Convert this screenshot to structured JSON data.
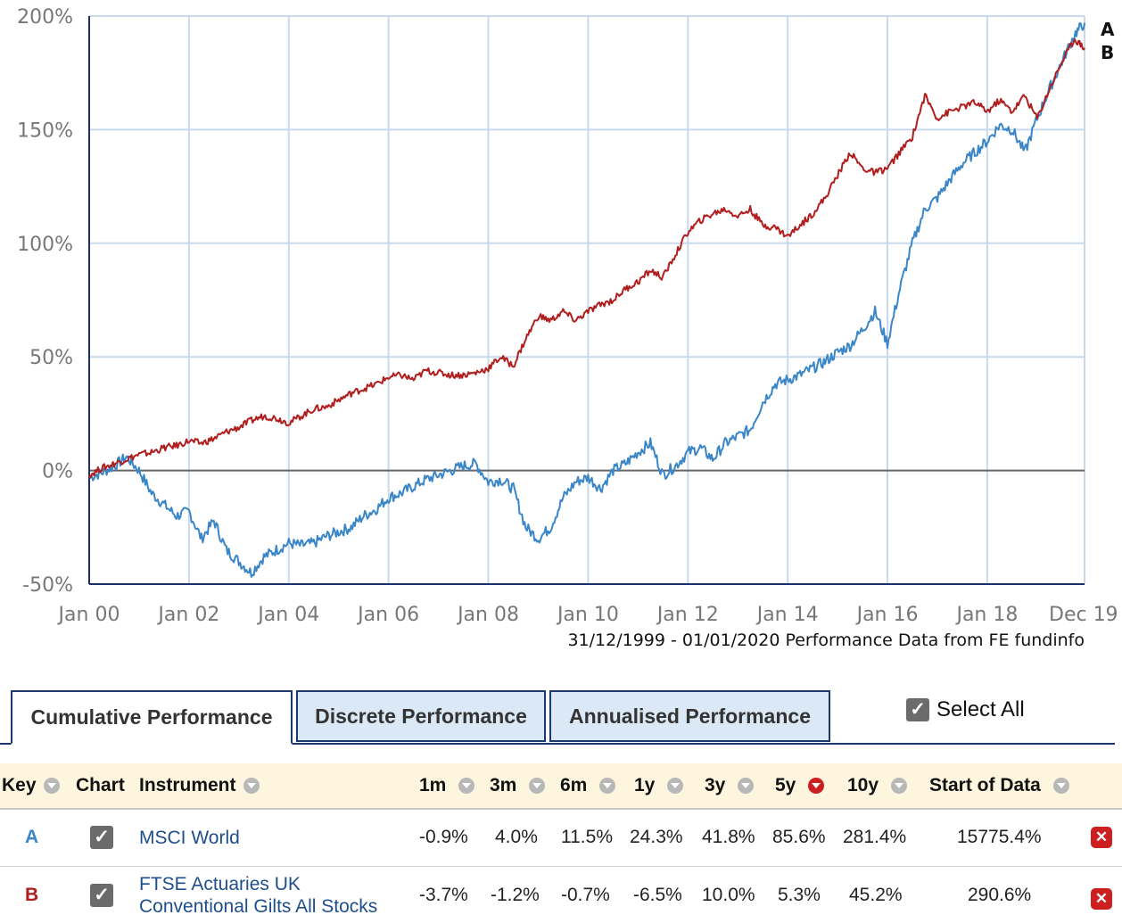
{
  "chart_data": {
    "type": "line",
    "ylim": [
      -50,
      200
    ],
    "y_ticks": [
      "200%",
      "150%",
      "100%",
      "50%",
      "0%",
      "-50%"
    ],
    "y_tick_values": [
      200,
      150,
      100,
      50,
      0,
      -50
    ],
    "x_ticks": [
      "Jan 00",
      "Jan 02",
      "Jan 04",
      "Jan 06",
      "Jan 08",
      "Jan 10",
      "Jan 12",
      "Jan 14",
      "Jan 16",
      "Jan 18",
      "Dec 19"
    ],
    "x_tick_years": [
      2000,
      2002,
      2004,
      2006,
      2008,
      2010,
      2012,
      2014,
      2016,
      2018,
      2019.95
    ],
    "grid": true,
    "source": "31/12/1999 - 01/01/2020 Performance Data from FE fundinfo",
    "series": [
      {
        "name": "A",
        "color": "#3a86c8",
        "x": [
          2000.0,
          2000.25,
          2000.5,
          2000.75,
          2001.0,
          2001.25,
          2001.5,
          2001.75,
          2002.0,
          2002.25,
          2002.5,
          2002.75,
          2003.0,
          2003.25,
          2003.5,
          2003.75,
          2004.0,
          2004.25,
          2004.5,
          2004.75,
          2005.0,
          2005.25,
          2005.5,
          2005.75,
          2006.0,
          2006.25,
          2006.5,
          2006.75,
          2007.0,
          2007.25,
          2007.5,
          2007.75,
          2008.0,
          2008.25,
          2008.5,
          2008.75,
          2009.0,
          2009.25,
          2009.5,
          2009.75,
          2010.0,
          2010.25,
          2010.5,
          2010.75,
          2011.0,
          2011.25,
          2011.5,
          2011.75,
          2012.0,
          2012.25,
          2012.5,
          2012.75,
          2013.0,
          2013.25,
          2013.5,
          2013.75,
          2014.0,
          2014.25,
          2014.5,
          2014.75,
          2015.0,
          2015.25,
          2015.5,
          2015.75,
          2016.0,
          2016.25,
          2016.5,
          2016.75,
          2017.0,
          2017.25,
          2017.5,
          2017.75,
          2018.0,
          2018.25,
          2018.5,
          2018.75,
          2019.0,
          2019.25,
          2019.5,
          2019.75,
          2019.95
        ],
        "values": [
          -3,
          -1,
          2,
          6,
          0,
          -10,
          -15,
          -20,
          -18,
          -30,
          -22,
          -35,
          -40,
          -45,
          -38,
          -35,
          -32,
          -33,
          -32,
          -29,
          -27,
          -25,
          -20,
          -17,
          -12,
          -10,
          -7,
          -4,
          -2,
          0,
          2,
          3,
          -5,
          -4,
          -8,
          -25,
          -30,
          -25,
          -12,
          -5,
          -3,
          -8,
          0,
          3,
          8,
          12,
          -2,
          2,
          8,
          10,
          5,
          12,
          15,
          18,
          30,
          38,
          40,
          42,
          45,
          48,
          52,
          55,
          62,
          70,
          56,
          80,
          100,
          115,
          120,
          128,
          135,
          140,
          145,
          152,
          150,
          140,
          155,
          168,
          180,
          192,
          197
        ]
      },
      {
        "name": "B",
        "color": "#b01e1e",
        "x": [
          2000.0,
          2000.25,
          2000.5,
          2000.75,
          2001.0,
          2001.25,
          2001.5,
          2001.75,
          2002.0,
          2002.25,
          2002.5,
          2002.75,
          2003.0,
          2003.25,
          2003.5,
          2003.75,
          2004.0,
          2004.25,
          2004.5,
          2004.75,
          2005.0,
          2005.25,
          2005.5,
          2005.75,
          2006.0,
          2006.25,
          2006.5,
          2006.75,
          2007.0,
          2007.25,
          2007.5,
          2007.75,
          2008.0,
          2008.25,
          2008.5,
          2008.75,
          2009.0,
          2009.25,
          2009.5,
          2009.75,
          2010.0,
          2010.25,
          2010.5,
          2010.75,
          2011.0,
          2011.25,
          2011.5,
          2011.75,
          2012.0,
          2012.25,
          2012.5,
          2012.75,
          2013.0,
          2013.25,
          2013.5,
          2013.75,
          2014.0,
          2014.25,
          2014.5,
          2014.75,
          2015.0,
          2015.25,
          2015.5,
          2015.75,
          2016.0,
          2016.25,
          2016.5,
          2016.75,
          2017.0,
          2017.25,
          2017.5,
          2017.75,
          2018.0,
          2018.25,
          2018.5,
          2018.75,
          2019.0,
          2019.25,
          2019.5,
          2019.75,
          2019.95
        ],
        "values": [
          -2,
          1,
          3,
          5,
          7,
          8,
          10,
          11,
          13,
          12,
          14,
          17,
          19,
          22,
          24,
          23,
          21,
          24,
          27,
          28,
          31,
          34,
          36,
          38,
          41,
          42,
          40,
          44,
          43,
          42,
          42,
          43,
          45,
          50,
          46,
          58,
          68,
          66,
          70,
          66,
          70,
          73,
          75,
          80,
          83,
          88,
          85,
          95,
          105,
          110,
          113,
          115,
          112,
          115,
          108,
          107,
          103,
          108,
          113,
          120,
          130,
          140,
          133,
          131,
          133,
          140,
          147,
          165,
          155,
          158,
          160,
          162,
          158,
          163,
          158,
          165,
          155,
          168,
          180,
          190,
          186
        ]
      }
    ]
  },
  "tabs": [
    {
      "label": "Cumulative Performance",
      "active": true
    },
    {
      "label": "Discrete Performance",
      "active": false
    },
    {
      "label": "Annualised Performance",
      "active": false
    }
  ],
  "select_all_label": "Select All",
  "table": {
    "headers": {
      "key": "Key",
      "chart": "Chart",
      "instrument": "Instrument",
      "m1": "1m",
      "m3": "3m",
      "m6": "6m",
      "y1": "1y",
      "y3": "3y",
      "y5": "5y",
      "y10": "10y",
      "start": "Start of Data"
    },
    "rows": [
      {
        "key": "A",
        "key_color": "#3a86c8",
        "instrument": "MSCI World",
        "m1": "-0.9%",
        "m3": "4.0%",
        "m6": "11.5%",
        "y1": "24.3%",
        "y3": "41.8%",
        "y5": "85.6%",
        "y10": "281.4%",
        "start": "15775.4%"
      },
      {
        "key": "B",
        "key_color": "#b01e1e",
        "instrument": "FTSE Actuaries UK Conventional Gilts All Stocks",
        "m1": "-3.7%",
        "m3": "-1.2%",
        "m6": "-0.7%",
        "y1": "-6.5%",
        "y3": "10.0%",
        "y5": "5.3%",
        "y10": "45.2%",
        "start": "290.6%"
      }
    ]
  }
}
